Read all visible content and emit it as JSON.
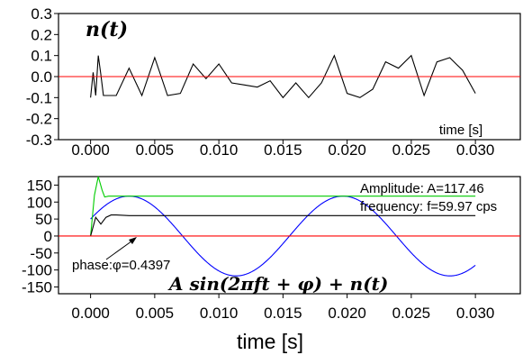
{
  "chart_data": [
    {
      "type": "line",
      "title": "n(t)",
      "xlabel": "time [s]",
      "ylabel": "",
      "xlim": [
        -0.0025,
        0.0335
      ],
      "ylim": [
        -0.3,
        0.3
      ],
      "xticks": [
        "0.000",
        "0.005",
        "0.010",
        "0.015",
        "0.020",
        "0.025",
        "0.030"
      ],
      "yticks": [
        "0.3",
        "0.2",
        "0.1",
        "0.0",
        "-0.1",
        "-0.2",
        "-0.3"
      ],
      "grid": false,
      "series": [
        {
          "color": "#000000",
          "x": [
            0.0,
            0.0002,
            0.0004,
            0.0006,
            0.0008,
            0.001,
            0.002,
            0.003,
            0.004,
            0.005,
            0.006,
            0.007,
            0.008,
            0.009,
            0.01,
            0.011,
            0.012,
            0.013,
            0.014,
            0.015,
            0.016,
            0.017,
            0.018,
            0.019,
            0.02,
            0.021,
            0.022,
            0.023,
            0.024,
            0.025,
            0.026,
            0.027,
            0.028,
            0.029,
            0.03
          ],
          "y": [
            -0.1,
            0.02,
            -0.09,
            0.1,
            0.01,
            -0.09,
            -0.09,
            0.04,
            -0.09,
            0.09,
            -0.09,
            -0.08,
            0.06,
            -0.01,
            0.06,
            -0.03,
            -0.04,
            -0.05,
            -0.02,
            -0.1,
            -0.03,
            -0.1,
            -0.03,
            0.1,
            -0.08,
            -0.1,
            -0.06,
            0.07,
            0.04,
            0.1,
            -0.09,
            0.07,
            0.09,
            0.03,
            -0.08
          ]
        },
        {
          "color": "#ff0000",
          "x": [
            -0.0025,
            0.0335
          ],
          "y": [
            0.0,
            0.0
          ]
        }
      ]
    },
    {
      "type": "line",
      "title": "A sin(2πft + φ) + n(t)",
      "xlabel": "time [s]",
      "ylabel": "",
      "xlim": [
        -0.0025,
        0.0335
      ],
      "ylim": [
        -170,
        175
      ],
      "xticks": [
        "0.000",
        "0.005",
        "0.010",
        "0.015",
        "0.020",
        "0.025",
        "0.030"
      ],
      "yticks": [
        "150",
        "100",
        "50",
        "0",
        "-50",
        "-100",
        "-150"
      ],
      "grid": false,
      "annotations": [
        "Amplitude: A=117.46",
        "frequency: f=59.97 cps",
        "phase:φ=0.4397"
      ],
      "signal": {
        "amplitude": 117.46,
        "frequency": 59.97,
        "phase": 0.4397,
        "t_start": 0.0,
        "t_end": 0.03
      },
      "series": [
        {
          "color": "#0000ff",
          "description": "blue sinusoid",
          "x": [
            0.0,
            0.03
          ]
        },
        {
          "color": "#00cc00",
          "x": [
            0.0,
            0.0003,
            0.0006,
            0.0009,
            0.0011,
            0.0014,
            0.03
          ],
          "y": [
            0,
            120,
            175,
            135,
            115,
            117.46,
            117.46
          ]
        },
        {
          "color": "#000000",
          "x": [
            0.0,
            0.0004,
            0.0008,
            0.0012,
            0.0016,
            0.002,
            0.003,
            0.03
          ],
          "y": [
            0,
            55,
            35,
            55,
            62,
            62,
            60,
            60
          ]
        },
        {
          "color": "#ff0000",
          "x": [
            -0.0025,
            0.0335
          ],
          "y": [
            0.0,
            0.0
          ]
        }
      ]
    }
  ]
}
